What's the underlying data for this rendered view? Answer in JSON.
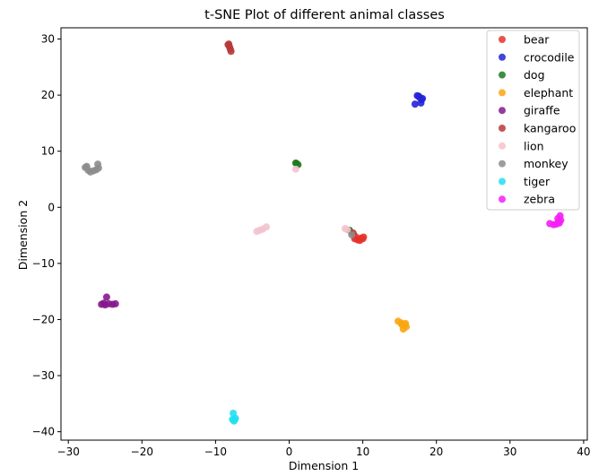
{
  "chart_data": {
    "type": "scatter",
    "title": "t-SNE Plot of different animal classes",
    "xlabel": "Dimension 1",
    "ylabel": "Dimension 2",
    "xlim": [
      -31,
      40.5
    ],
    "ylim": [
      -41.5,
      32
    ],
    "xticks": [
      -30,
      -20,
      -10,
      0,
      10,
      20,
      30,
      40
    ],
    "yticks": [
      -40,
      -30,
      -20,
      -10,
      0,
      10,
      20,
      30
    ],
    "xtick_labels": [
      "−30",
      "−20",
      "−10",
      "0",
      "10",
      "20",
      "30",
      "40"
    ],
    "ytick_labels": [
      "−40",
      "−30",
      "−20",
      "−10",
      "0",
      "10",
      "20",
      "30"
    ],
    "grid": false,
    "legend_position": "top-right",
    "series": [
      {
        "name": "bear",
        "color": "#e8312b",
        "points": [
          [
            8.9,
            -5.6
          ],
          [
            9.3,
            -5.8
          ],
          [
            9.7,
            -5.5
          ],
          [
            10.1,
            -5.3
          ],
          [
            9.0,
            -5.2
          ],
          [
            9.6,
            -5.9
          ],
          [
            10.0,
            -5.6
          ]
        ]
      },
      {
        "name": "crocodile",
        "color": "#2323d9",
        "points": [
          [
            17.1,
            18.4
          ],
          [
            17.4,
            19.9
          ],
          [
            17.7,
            19.6
          ],
          [
            18.0,
            19.2
          ],
          [
            17.9,
            18.6
          ],
          [
            17.6,
            19.8
          ],
          [
            18.1,
            19.4
          ]
        ]
      },
      {
        "name": "dog",
        "color": "#1f7a1f",
        "points": [
          [
            1.0,
            7.8
          ],
          [
            1.2,
            7.6
          ],
          [
            0.9,
            7.9
          ],
          [
            8.2,
            -4.1
          ]
        ]
      },
      {
        "name": "elephant",
        "color": "#f9a60f",
        "points": [
          [
            14.8,
            -20.3
          ],
          [
            15.2,
            -20.6
          ],
          [
            15.6,
            -21.0
          ],
          [
            15.8,
            -20.7
          ],
          [
            15.5,
            -21.7
          ],
          [
            15.9,
            -21.3
          ],
          [
            15.3,
            -20.9
          ]
        ]
      },
      {
        "name": "giraffe",
        "color": "#86178e",
        "points": [
          [
            -25.5,
            -17.3
          ],
          [
            -25.0,
            -17.4
          ],
          [
            -24.5,
            -17.2
          ],
          [
            -24.0,
            -17.3
          ],
          [
            -23.6,
            -17.2
          ],
          [
            -24.8,
            -16.0
          ],
          [
            -25.2,
            -17.1
          ]
        ]
      },
      {
        "name": "kangaroo",
        "color": "#b83a3a",
        "points": [
          [
            -8.3,
            29.0
          ],
          [
            -8.1,
            28.6
          ],
          [
            -8.0,
            28.2
          ],
          [
            -7.9,
            27.8
          ],
          [
            -8.2,
            29.1
          ],
          [
            8.7,
            -4.6
          ]
        ]
      },
      {
        "name": "lion",
        "color": "#f4c2cd",
        "points": [
          [
            -4.4,
            -4.3
          ],
          [
            -4.0,
            -4.1
          ],
          [
            -3.6,
            -3.9
          ],
          [
            -3.1,
            -3.5
          ],
          [
            7.6,
            -3.8
          ],
          [
            7.9,
            -4.0
          ],
          [
            0.9,
            6.8
          ]
        ]
      },
      {
        "name": "monkey",
        "color": "#8c8c8c",
        "points": [
          [
            -27.7,
            7.1
          ],
          [
            -27.3,
            6.6
          ],
          [
            -27.0,
            6.3
          ],
          [
            -26.6,
            6.5
          ],
          [
            -26.2,
            6.7
          ],
          [
            -25.9,
            7.0
          ],
          [
            -26.0,
            7.7
          ],
          [
            -27.5,
            7.3
          ],
          [
            8.5,
            -4.9
          ]
        ]
      },
      {
        "name": "tiger",
        "color": "#22dff2",
        "points": [
          [
            -7.7,
            -37.8
          ],
          [
            -7.5,
            -38.1
          ],
          [
            -7.3,
            -37.6
          ],
          [
            -7.6,
            -36.7
          ],
          [
            -7.4,
            -37.9
          ]
        ]
      },
      {
        "name": "zebra",
        "color": "#f51ef5",
        "points": [
          [
            35.4,
            -2.9
          ],
          [
            35.9,
            -3.1
          ],
          [
            36.3,
            -3.0
          ],
          [
            36.6,
            -2.6
          ],
          [
            36.9,
            -2.3
          ],
          [
            36.8,
            -1.5
          ],
          [
            36.5,
            -2.0
          ],
          [
            36.7,
            -2.8
          ]
        ]
      }
    ]
  }
}
